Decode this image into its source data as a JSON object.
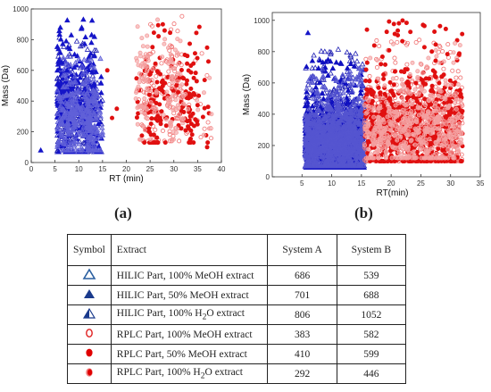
{
  "chart_data": [
    {
      "type": "scatter",
      "title": "",
      "xlabel": "RT (min)",
      "ylabel": "Mass (Da)",
      "xlim": [
        0,
        40
      ],
      "ylim": [
        0,
        1000
      ],
      "xticks": [
        0,
        5,
        10,
        15,
        20,
        25,
        30,
        35,
        40
      ],
      "yticks": [
        0,
        200,
        400,
        600,
        800,
        1000
      ],
      "grid": false,
      "series": [
        {
          "symbol": "triangle-open",
          "color": "#1f1fb4",
          "x_range": [
            5.5,
            15
          ],
          "y_range": [
            70,
            820
          ],
          "peaks": [
            7,
            11.5
          ],
          "count": 686
        },
        {
          "symbol": "triangle-filled",
          "color": "#1515c8",
          "x_range": [
            5.5,
            15
          ],
          "y_range": [
            70,
            950
          ],
          "peaks": [
            7,
            12
          ],
          "count": 701
        },
        {
          "symbol": "triangle-half",
          "color": "#6060d8",
          "x_range": [
            5.5,
            15
          ],
          "y_range": [
            80,
            700
          ],
          "peaks": [
            8,
            12
          ],
          "count": 806
        },
        {
          "symbol": "circle-open",
          "color": "#f07070",
          "x_range": [
            22,
            38
          ],
          "y_range": [
            140,
            970
          ],
          "peaks": [
            25,
            30
          ],
          "count": 383
        },
        {
          "symbol": "circle-filled",
          "color": "#e01010",
          "x_range": [
            22,
            38
          ],
          "y_range": [
            130,
            900
          ],
          "peaks": [
            26,
            33
          ],
          "count": 410
        },
        {
          "symbol": "circle-half",
          "color": "#f4a0a0",
          "x_range": [
            22,
            38
          ],
          "y_range": [
            150,
            960
          ],
          "peaks": [
            24,
            30
          ],
          "count": 292
        }
      ],
      "outliers": [
        [
          2,
          80
        ],
        [
          6.5,
          650
        ],
        [
          7.5,
          600
        ],
        [
          16,
          600
        ],
        [
          17,
          290
        ],
        [
          18,
          350
        ],
        [
          37,
          100
        ]
      ]
    },
    {
      "type": "scatter",
      "title": "",
      "xlabel": "RT(min)",
      "ylabel": "Mass (Da)",
      "xlim": [
        0,
        35
      ],
      "ylim": [
        0,
        1050
      ],
      "xticks": [
        5,
        10,
        15,
        20,
        25,
        30,
        35
      ],
      "yticks": [
        0,
        200,
        400,
        600,
        800,
        1000
      ],
      "grid": false,
      "series": [
        {
          "symbol": "triangle-open",
          "color": "#1f1fb4",
          "x_range": [
            5.5,
            15.5
          ],
          "y_range": [
            60,
            820
          ],
          "count": 539
        },
        {
          "symbol": "triangle-filled",
          "color": "#1010c0",
          "x_range": [
            5.5,
            15.5
          ],
          "y_range": [
            60,
            750
          ],
          "count": 688
        },
        {
          "symbol": "triangle-half",
          "color": "#5555d0",
          "x_range": [
            5.5,
            15.5
          ],
          "y_range": [
            70,
            700
          ],
          "count": 1052
        },
        {
          "symbol": "circle-open",
          "color": "#f07070",
          "x_range": [
            15.5,
            32
          ],
          "y_range": [
            100,
            880
          ],
          "count": 582
        },
        {
          "symbol": "circle-filled",
          "color": "#e01010",
          "x_range": [
            15.5,
            32
          ],
          "y_range": [
            100,
            1000
          ],
          "count": 599
        },
        {
          "symbol": "circle-half",
          "color": "#f4a0a0",
          "x_range": [
            15.5,
            32
          ],
          "y_range": [
            120,
            860
          ],
          "count": 446
        }
      ],
      "outliers": [
        [
          6,
          920
        ]
      ]
    }
  ],
  "panels": {
    "a_label": "(a)",
    "b_label": "(b)"
  },
  "table": {
    "headers": {
      "symbol": "Symbol",
      "extract": "Extract",
      "system_a": "System A",
      "system_b": "System B"
    },
    "rows": [
      {
        "symbol": "triangle-open-icon",
        "extract_pre": "HILIC Part, 100% MeOH extract",
        "sub": "",
        "extract_post": "",
        "a": "686",
        "b": "539"
      },
      {
        "symbol": "triangle-filled-icon",
        "extract_pre": "HILIC Part, 50% MeOH extract",
        "sub": "",
        "extract_post": "",
        "a": "701",
        "b": "688"
      },
      {
        "symbol": "triangle-half-icon",
        "extract_pre": "HILIC Part, 100% H",
        "sub": "2",
        "extract_post": "O extract",
        "a": "806",
        "b": "1052"
      },
      {
        "symbol": "circle-open-icon",
        "extract_pre": "RPLC Part, 100% MeOH extract",
        "sub": "",
        "extract_post": "",
        "a": "383",
        "b": "582"
      },
      {
        "symbol": "circle-filled-icon",
        "extract_pre": "RPLC Part, 50% MeOH extract",
        "sub": "",
        "extract_post": "",
        "a": "410",
        "b": "599"
      },
      {
        "symbol": "circle-half-icon",
        "extract_pre": "RPLC Part, 100% H",
        "sub": "2",
        "extract_post": "O extract",
        "a": "292",
        "b": "446"
      }
    ]
  }
}
